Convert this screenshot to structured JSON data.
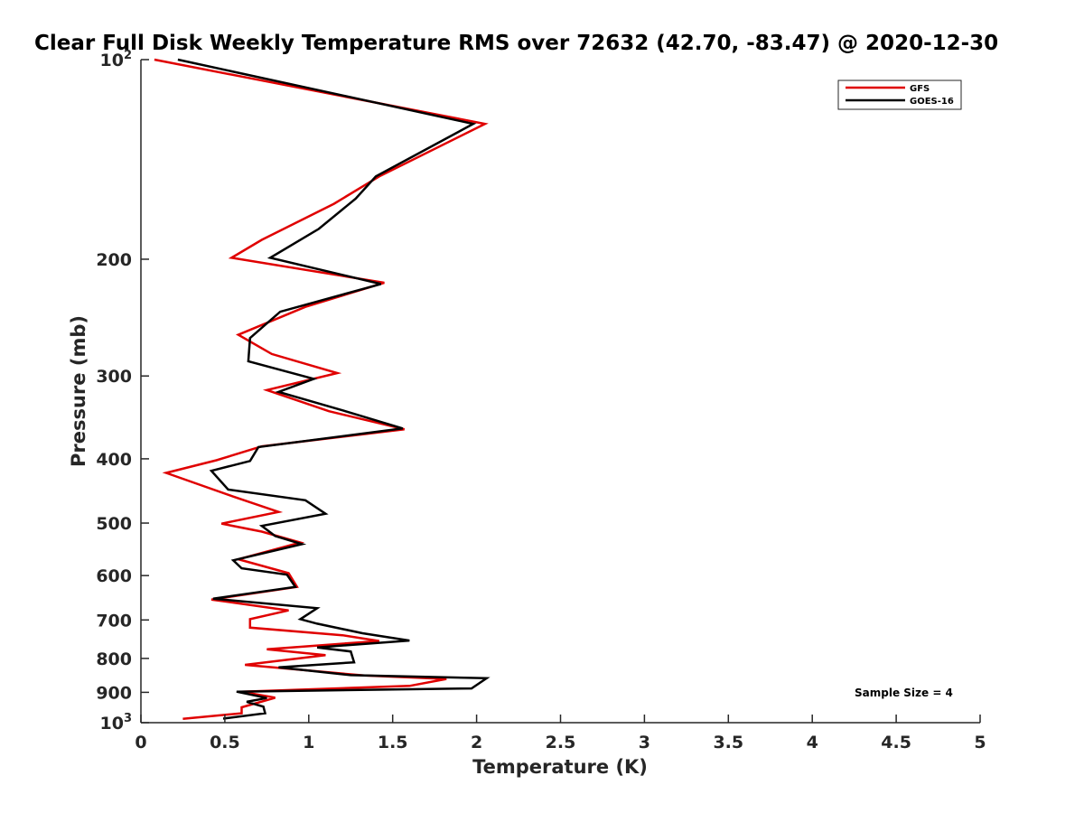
{
  "chart_data": {
    "type": "line",
    "title": "Clear Full Disk Weekly Temperature RMS over 72632 (42.70, -83.47) @ 2020-12-30",
    "xlabel": "Temperature (K)",
    "ylabel": "Pressure (mb)",
    "xlim": [
      0,
      5
    ],
    "ylim": [
      100,
      1000
    ],
    "y_scale": "log",
    "y_reversed": true,
    "x_ticks": [
      "0",
      "0.5",
      "1",
      "1.5",
      "2",
      "2.5",
      "3",
      "3.5",
      "4",
      "4.5",
      "5"
    ],
    "x_tick_values": [
      0,
      0.5,
      1,
      1.5,
      2,
      2.5,
      3,
      3.5,
      4,
      4.5,
      5
    ],
    "y_ticks": [
      {
        "value": 100,
        "base": "10",
        "exp": "2"
      },
      {
        "value": 200,
        "label": "200"
      },
      {
        "value": 300,
        "label": "300"
      },
      {
        "value": 400,
        "label": "400"
      },
      {
        "value": 500,
        "label": "500"
      },
      {
        "value": 600,
        "label": "600"
      },
      {
        "value": 700,
        "label": "700"
      },
      {
        "value": 800,
        "label": "800"
      },
      {
        "value": 900,
        "label": "900"
      },
      {
        "value": 1000,
        "base": "10",
        "exp": "3"
      }
    ],
    "grid": false,
    "legend_position": "top-right",
    "annotation": "Sample Size = 4",
    "series": [
      {
        "name": "GFS",
        "color": "#e00000",
        "points": [
          [
            0.08,
            100
          ],
          [
            2.05,
            125
          ],
          [
            1.42,
            150
          ],
          [
            1.15,
            165
          ],
          [
            0.72,
            187
          ],
          [
            0.54,
            199
          ],
          [
            1.45,
            217
          ],
          [
            0.98,
            236
          ],
          [
            0.58,
            260
          ],
          [
            0.78,
            278
          ],
          [
            1.17,
            297
          ],
          [
            0.75,
            315
          ],
          [
            1.12,
            339
          ],
          [
            1.57,
            361
          ],
          [
            0.72,
            383
          ],
          [
            0.45,
            402
          ],
          [
            0.15,
            420
          ],
          [
            0.55,
            456
          ],
          [
            0.82,
            481
          ],
          [
            0.48,
            501
          ],
          [
            0.72,
            515
          ],
          [
            0.95,
            535
          ],
          [
            0.58,
            567
          ],
          [
            0.88,
            595
          ],
          [
            0.93,
            624
          ],
          [
            0.42,
            652
          ],
          [
            0.88,
            677
          ],
          [
            0.65,
            698
          ],
          [
            0.65,
            719
          ],
          [
            1.2,
            738
          ],
          [
            1.42,
            753
          ],
          [
            0.75,
            775
          ],
          [
            1.1,
            791
          ],
          [
            0.62,
            818
          ],
          [
            1.33,
            849
          ],
          [
            1.82,
            859
          ],
          [
            1.6,
            880
          ],
          [
            0.6,
            898
          ],
          [
            0.8,
            917
          ],
          [
            0.6,
            948
          ],
          [
            0.6,
            968
          ],
          [
            0.25,
            987
          ]
        ]
      },
      {
        "name": "GOES-16",
        "color": "#000000",
        "points": [
          [
            0.22,
            100
          ],
          [
            1.98,
            125
          ],
          [
            1.4,
            150
          ],
          [
            1.28,
            162
          ],
          [
            1.06,
            180
          ],
          [
            0.77,
            199
          ],
          [
            1.43,
            218
          ],
          [
            0.83,
            240
          ],
          [
            0.65,
            263
          ],
          [
            0.64,
            285
          ],
          [
            1.03,
            303
          ],
          [
            0.82,
            317
          ],
          [
            1.2,
            338
          ],
          [
            1.56,
            360
          ],
          [
            0.7,
            384
          ],
          [
            0.65,
            403
          ],
          [
            0.42,
            417
          ],
          [
            0.52,
            445
          ],
          [
            0.98,
            462
          ],
          [
            1.1,
            484
          ],
          [
            0.72,
            505
          ],
          [
            0.8,
            523
          ],
          [
            0.96,
            538
          ],
          [
            0.55,
            569
          ],
          [
            0.6,
            585
          ],
          [
            0.87,
            598
          ],
          [
            0.92,
            624
          ],
          [
            0.43,
            650
          ],
          [
            1.05,
            672
          ],
          [
            0.95,
            698
          ],
          [
            1.05,
            709
          ],
          [
            1.32,
            733
          ],
          [
            1.6,
            752
          ],
          [
            1.05,
            770
          ],
          [
            1.25,
            781
          ],
          [
            1.27,
            811
          ],
          [
            0.82,
            825
          ],
          [
            1.25,
            848
          ],
          [
            2.06,
            857
          ],
          [
            1.97,
            888
          ],
          [
            0.57,
            898
          ],
          [
            0.75,
            918
          ],
          [
            0.63,
            930
          ],
          [
            0.73,
            946
          ],
          [
            0.74,
            968
          ],
          [
            0.49,
            986
          ]
        ]
      }
    ]
  }
}
